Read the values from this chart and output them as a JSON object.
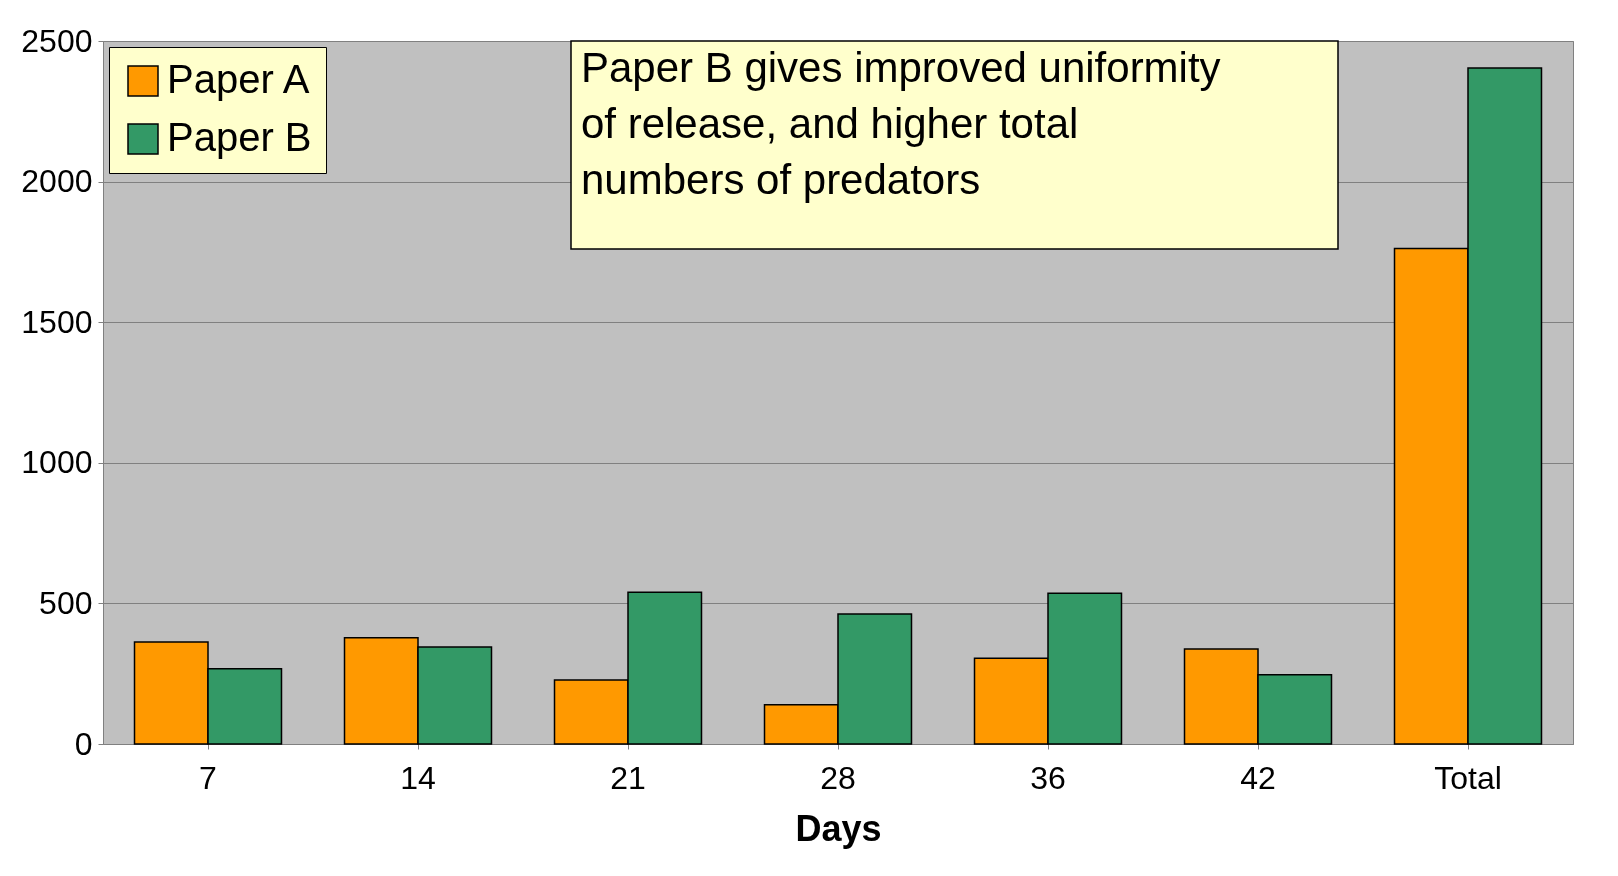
{
  "chart_data": {
    "type": "bar",
    "xlabel": "Days",
    "categories": [
      "7",
      "14",
      "21",
      "28",
      "36",
      "42",
      "Total"
    ],
    "series": [
      {
        "name": "Paper A",
        "color": "#ff9900",
        "values": [
          363,
          378,
          228,
          140,
          305,
          338,
          1762
        ]
      },
      {
        "name": "Paper B",
        "color": "#339966",
        "values": [
          268,
          345,
          540,
          462,
          536,
          246,
          2404
        ]
      }
    ],
    "ylim": [
      0,
      2500
    ],
    "yticks": [
      0,
      500,
      1000,
      1500,
      2000,
      2500
    ],
    "grid": "y",
    "legend": "top left",
    "annotations": [
      "Paper B gives improved uniformity\nof release, and higher total\nnumbers of predators"
    ]
  }
}
